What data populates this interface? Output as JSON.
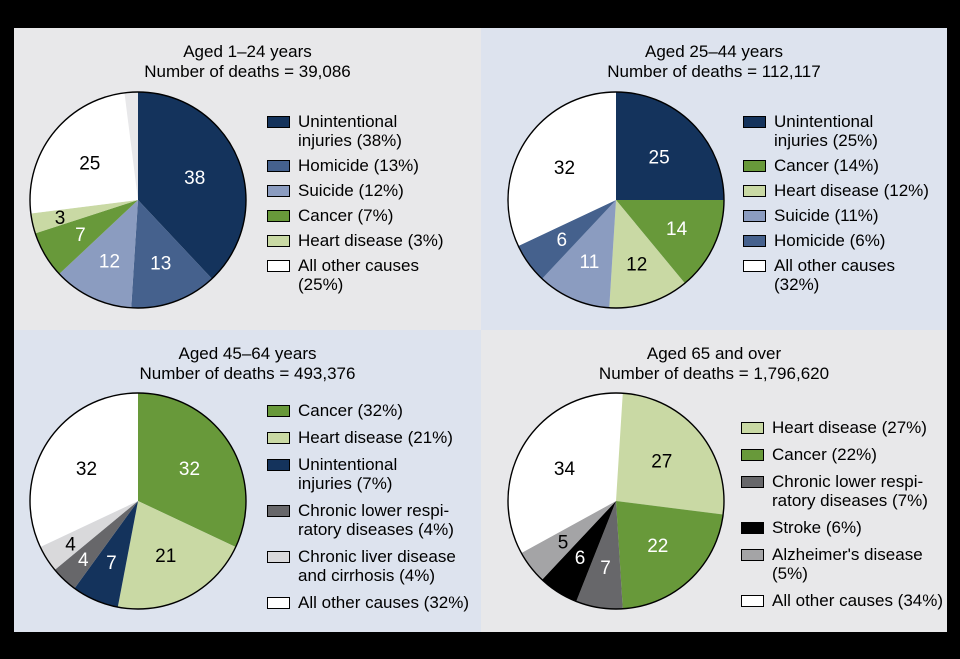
{
  "figure": {
    "frame_color": "#000000",
    "panel_bg_gray": "#e8e8ea",
    "panel_bg_blue": "#dde3ee",
    "pie_outline_color": "#000000"
  },
  "chart_data": [
    {
      "type": "pie",
      "title": "Aged 1–24 years",
      "subtitle": "Number of deaths = 39,086",
      "panel_bg": "#e8e8ea",
      "legend_position": "right",
      "slices": [
        {
          "label": "Unintentional injuries",
          "pct": 38,
          "color": "#14335c",
          "value_label": "38",
          "value_label_color": "#ffffff",
          "legend_text": "Unintentional\ninjuries (38%)"
        },
        {
          "label": "Homicide",
          "pct": 13,
          "color": "#45618d",
          "value_label": "13",
          "value_label_color": "#ffffff",
          "legend_text": "Homicide (13%)"
        },
        {
          "label": "Suicide",
          "pct": 12,
          "color": "#8b9cc0",
          "value_label": "12",
          "value_label_color": "#ffffff",
          "legend_text": "Suicide (12%)"
        },
        {
          "label": "Cancer",
          "pct": 7,
          "color": "#68993a",
          "value_label": "7",
          "value_label_color": "#ffffff",
          "legend_text": "Cancer (7%)"
        },
        {
          "label": "Heart disease",
          "pct": 3,
          "color": "#c9d9a4",
          "value_label": "3",
          "value_label_color": "#000000",
          "legend_text": "Heart disease (3%)"
        },
        {
          "label": "All other causes",
          "pct": 25,
          "color": "#ffffff",
          "value_label": "25",
          "value_label_color": "#000000",
          "legend_text": "All other causes\n(25%)"
        }
      ]
    },
    {
      "type": "pie",
      "title": "Aged 25–44 years",
      "subtitle": "Number of deaths = 112,117",
      "panel_bg": "#dde3ee",
      "legend_position": "right",
      "slices": [
        {
          "label": "Unintentional injuries",
          "pct": 25,
          "color": "#14335c",
          "value_label": "25",
          "value_label_color": "#ffffff",
          "legend_text": "Unintentional\ninjuries (25%)"
        },
        {
          "label": "Cancer",
          "pct": 14,
          "color": "#68993a",
          "value_label": "14",
          "value_label_color": "#ffffff",
          "legend_text": "Cancer (14%)"
        },
        {
          "label": "Heart disease",
          "pct": 12,
          "color": "#c9d9a4",
          "value_label": "12",
          "value_label_color": "#000000",
          "legend_text": "Heart disease (12%)"
        },
        {
          "label": "Suicide",
          "pct": 11,
          "color": "#8b9cc0",
          "value_label": "11",
          "value_label_color": "#ffffff",
          "legend_text": "Suicide (11%)"
        },
        {
          "label": "Homicide",
          "pct": 6,
          "color": "#45618d",
          "value_label": "6",
          "value_label_color": "#ffffff",
          "legend_text": "Homicide (6%)"
        },
        {
          "label": "All other causes",
          "pct": 32,
          "color": "#ffffff",
          "value_label": "32",
          "value_label_color": "#000000",
          "legend_text": "All other causes\n(32%)"
        }
      ]
    },
    {
      "type": "pie",
      "title": "Aged 45–64 years",
      "subtitle": "Number of deaths = 493,376",
      "panel_bg": "#dde3ee",
      "legend_position": "right",
      "slices": [
        {
          "label": "Cancer",
          "pct": 32,
          "color": "#68993a",
          "value_label": "32",
          "value_label_color": "#ffffff",
          "legend_text": "Cancer (32%)"
        },
        {
          "label": "Heart disease",
          "pct": 21,
          "color": "#c9d9a4",
          "value_label": "21",
          "value_label_color": "#000000",
          "legend_text": "Heart disease (21%)"
        },
        {
          "label": "Unintentional injuries",
          "pct": 7,
          "color": "#14335c",
          "value_label": "7",
          "value_label_color": "#ffffff",
          "legend_text": "Unintentional\ninjuries (7%)"
        },
        {
          "label": "Chronic lower respiratory diseases",
          "pct": 4,
          "color": "#67676a",
          "value_label": "4",
          "value_label_color": "#ffffff",
          "legend_text": "Chronic lower respi-\nratory diseases (4%)"
        },
        {
          "label": "Chronic liver disease and cirrhosis",
          "pct": 4,
          "color": "#d9d9db",
          "value_label": "4",
          "value_label_color": "#000000",
          "legend_text": "Chronic liver disease\nand cirrhosis (4%)"
        },
        {
          "label": "All other causes",
          "pct": 32,
          "color": "#ffffff",
          "value_label": "32",
          "value_label_color": "#000000",
          "legend_text": "All other causes (32%)"
        }
      ]
    },
    {
      "type": "pie",
      "title": "Aged 65 and over",
      "subtitle": "Number of deaths = 1,796,620",
      "panel_bg": "#e8e8ea",
      "legend_position": "right",
      "slices": [
        {
          "label": "Heart disease",
          "pct": 27,
          "color": "#c9d9a4",
          "value_label": "27",
          "value_label_color": "#000000",
          "legend_text": "Heart disease (27%)"
        },
        {
          "label": "Cancer",
          "pct": 22,
          "color": "#68993a",
          "value_label": "22",
          "value_label_color": "#ffffff",
          "legend_text": "Cancer (22%)"
        },
        {
          "label": "Chronic lower respiratory diseases",
          "pct": 7,
          "color": "#67676a",
          "value_label": "7",
          "value_label_color": "#ffffff",
          "legend_text": "Chronic lower respi-\nratory diseases (7%)"
        },
        {
          "label": "Stroke",
          "pct": 6,
          "color": "#000000",
          "value_label": "6",
          "value_label_color": "#ffffff",
          "legend_text": "Stroke (6%)"
        },
        {
          "label": "Alzheimer's disease",
          "pct": 5,
          "color": "#a4a4a6",
          "value_label": "5",
          "value_label_color": "#000000",
          "legend_text": "Alzheimer's disease\n(5%)"
        },
        {
          "label": "All other causes",
          "pct": 34,
          "color": "#ffffff",
          "value_label": "34",
          "value_label_color": "#000000",
          "legend_text": "All other causes (34%)"
        }
      ]
    }
  ]
}
